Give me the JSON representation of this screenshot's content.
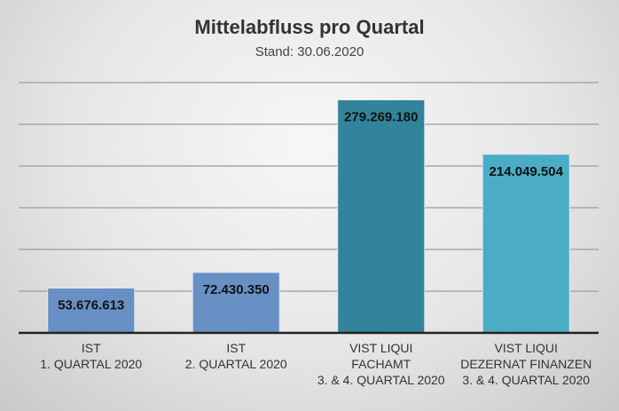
{
  "chart_data": {
    "type": "bar",
    "title": "Mittelabfluss pro Quartal",
    "subtitle": "Stand: 30.06.2020",
    "categories": [
      [
        "IST",
        "1. QUARTAL 2020"
      ],
      [
        "IST",
        "2. QUARTAL 2020"
      ],
      [
        "VIST LIQUI",
        "FACHAMT",
        "3. & 4. QUARTAL 2020"
      ],
      [
        "VIST LIQUI",
        "DEZERNAT FINANZEN",
        "3. & 4. QUARTAL 2020"
      ]
    ],
    "values": [
      53676613,
      72430350,
      279269180,
      214049504
    ],
    "data_labels": [
      "53.676.613",
      "72.430.350",
      "279.269.180",
      "214.049.504"
    ],
    "colors": [
      "#6890c4",
      "#6890c4",
      "#31849b",
      "#4bacc6"
    ],
    "ylim": [
      0,
      300000000
    ],
    "grid_step": 50000000,
    "grid": true,
    "y_axis_labels_shown": false,
    "legend": "none"
  }
}
